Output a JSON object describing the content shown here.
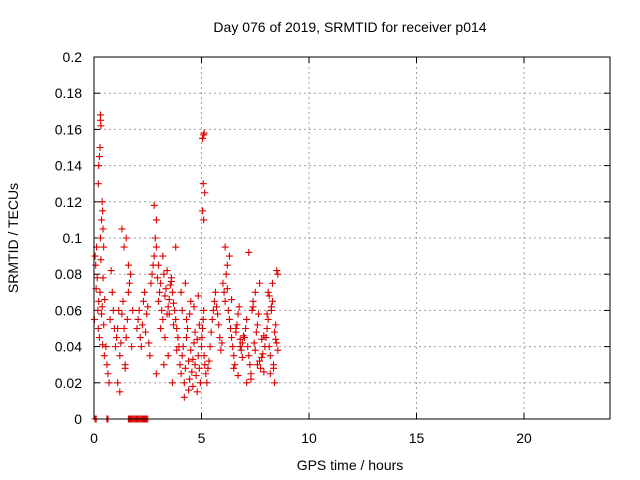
{
  "chart_data": {
    "type": "scatter",
    "title": "Day 076 of 2019, SRMTID for receiver p014",
    "xlabel": "GPS time / hours",
    "ylabel": "SRMTID / TECUs",
    "xlim": [
      0,
      24
    ],
    "ylim": [
      0,
      0.2
    ],
    "x_ticks": [
      0,
      5,
      10,
      15,
      20
    ],
    "x_tick_labels": [
      "0",
      "5",
      "10",
      "15",
      "20"
    ],
    "y_ticks": [
      0,
      0.02,
      0.04,
      0.06,
      0.08,
      0.1,
      0.12,
      0.14,
      0.16,
      0.18,
      0.2
    ],
    "y_tick_labels": [
      "0",
      "0.02",
      "0.04",
      "0.06",
      "0.08",
      "0.1",
      "0.12",
      "0.14",
      "0.16",
      "0.18",
      "0.2"
    ],
    "grid": true,
    "marker": "+",
    "color": "#dd0000",
    "series": [
      {
        "name": "SRMTID",
        "x": [
          0.02,
          0.05,
          0.08,
          0.1,
          0.12,
          0.15,
          0.18,
          0.2,
          0.22,
          0.25,
          0.28,
          0.3,
          0.32,
          0.35,
          0.38,
          0.4,
          0.42,
          0.45,
          0.48,
          0.5,
          0.55,
          0.6,
          0.65,
          0.7,
          0.75,
          0.8,
          0.85,
          0.9,
          0.95,
          0.2,
          0.22,
          0.25,
          0.28,
          0.3,
          0.3,
          0.32,
          0.35,
          0.38,
          0.4,
          0.42,
          0.45,
          1.0,
          1.05,
          1.1,
          1.15,
          1.2,
          1.25,
          1.3,
          1.35,
          1.4,
          1.45,
          1.5,
          1.55,
          1.6,
          1.65,
          1.7,
          1.75,
          1.8,
          1.5,
          1.3,
          1.4,
          1.6,
          1.1,
          1.2,
          1.45,
          2.0,
          2.05,
          2.1,
          2.15,
          2.2,
          2.25,
          2.3,
          2.35,
          2.4,
          2.45,
          2.5,
          2.55,
          2.6,
          2.65,
          2.7,
          2.75,
          2.8,
          2.85,
          2.9,
          2.95,
          2.8,
          2.9,
          3.0,
          3.05,
          3.1,
          3.15,
          3.2,
          3.25,
          3.3,
          3.35,
          3.4,
          3.45,
          3.5,
          3.55,
          3.6,
          3.65,
          3.7,
          3.75,
          3.8,
          3.85,
          3.9,
          3.95,
          3.0,
          3.2,
          3.4,
          3.6,
          3.8,
          3.1,
          3.3,
          3.5,
          3.7,
          2.9,
          3.25,
          3.45,
          3.65,
          3.85,
          4.0,
          4.05,
          4.1,
          4.15,
          4.2,
          4.25,
          4.3,
          4.35,
          4.4,
          4.45,
          4.5,
          4.55,
          4.6,
          4.65,
          4.7,
          4.75,
          4.8,
          4.85,
          4.9,
          4.95,
          4.1,
          4.3,
          4.5,
          4.7,
          4.9,
          4.2,
          4.4,
          4.6,
          4.8,
          4.05,
          4.25,
          4.45,
          4.65,
          4.85,
          5.0,
          5.02,
          5.05,
          5.08,
          5.1,
          5.12,
          5.15,
          5.2,
          5.25,
          5.3,
          5.35,
          5.4,
          5.45,
          5.5,
          5.55,
          5.6,
          5.65,
          5.7,
          5.75,
          5.8,
          5.85,
          5.9,
          5.95,
          5.05,
          5.1,
          5.12,
          5.08,
          5.15,
          5.05,
          5.1,
          6.0,
          6.05,
          6.1,
          6.15,
          6.2,
          6.25,
          6.3,
          6.35,
          6.4,
          6.45,
          6.5,
          6.55,
          6.6,
          6.65,
          6.7,
          6.75,
          6.8,
          6.85,
          6.9,
          6.95,
          6.1,
          6.3,
          6.5,
          6.7,
          6.9,
          6.2,
          6.4,
          6.6,
          6.8,
          7.0,
          7.05,
          7.1,
          7.15,
          7.2,
          7.25,
          7.3,
          7.35,
          7.4,
          7.45,
          7.5,
          7.55,
          7.6,
          7.65,
          7.7,
          7.75,
          7.8,
          7.85,
          7.9,
          7.95,
          7.1,
          7.3,
          7.5,
          7.7,
          7.9,
          7.2,
          7.4,
          7.6,
          7.8,
          8.0,
          8.05,
          8.1,
          8.15,
          8.2,
          8.25,
          8.3,
          8.35,
          8.4,
          8.45,
          8.5,
          8.55,
          8.1,
          8.3,
          8.5,
          8.2,
          8.4,
          8.05,
          8.25,
          8.45,
          8.15,
          8.35,
          8.55,
          0.05,
          0.1,
          0.6,
          0.65,
          1.6,
          1.65,
          1.7,
          1.75,
          1.8,
          1.85,
          1.9,
          1.95,
          2.0,
          2.05,
          2.1,
          2.15,
          2.2,
          2.25,
          2.3,
          2.35,
          2.4,
          2.45,
          2.5
        ],
        "y": [
          0.055,
          0.09,
          0.085,
          0.072,
          0.095,
          0.078,
          0.06,
          0.05,
          0.065,
          0.045,
          0.07,
          0.1,
          0.088,
          0.058,
          0.062,
          0.041,
          0.078,
          0.052,
          0.035,
          0.066,
          0.04,
          0.03,
          0.025,
          0.02,
          0.055,
          0.082,
          0.07,
          0.06,
          0.05,
          0.13,
          0.14,
          0.145,
          0.15,
          0.165,
          0.168,
          0.162,
          0.11,
          0.12,
          0.115,
          0.105,
          0.095,
          0.04,
          0.045,
          0.05,
          0.06,
          0.035,
          0.042,
          0.058,
          0.065,
          0.05,
          0.03,
          0.045,
          0.055,
          0.07,
          0.075,
          0.08,
          0.04,
          0.06,
          0.1,
          0.105,
          0.095,
          0.085,
          0.02,
          0.015,
          0.028,
          0.05,
          0.055,
          0.06,
          0.045,
          0.04,
          0.052,
          0.065,
          0.07,
          0.048,
          0.058,
          0.062,
          0.042,
          0.035,
          0.075,
          0.08,
          0.085,
          0.09,
          0.1,
          0.095,
          0.078,
          0.118,
          0.11,
          0.065,
          0.07,
          0.075,
          0.06,
          0.055,
          0.08,
          0.068,
          0.072,
          0.058,
          0.062,
          0.066,
          0.074,
          0.078,
          0.07,
          0.064,
          0.06,
          0.055,
          0.05,
          0.045,
          0.04,
          0.085,
          0.09,
          0.082,
          0.076,
          0.095,
          0.05,
          0.045,
          0.058,
          0.052,
          0.025,
          0.03,
          0.035,
          0.02,
          0.038,
          0.03,
          0.025,
          0.035,
          0.04,
          0.02,
          0.028,
          0.045,
          0.05,
          0.032,
          0.022,
          0.038,
          0.026,
          0.018,
          0.042,
          0.03,
          0.024,
          0.015,
          0.035,
          0.028,
          0.02,
          0.06,
          0.055,
          0.065,
          0.048,
          0.052,
          0.012,
          0.016,
          0.033,
          0.044,
          0.07,
          0.075,
          0.058,
          0.062,
          0.068,
          0.04,
          0.045,
          0.05,
          0.055,
          0.06,
          0.035,
          0.03,
          0.025,
          0.02,
          0.028,
          0.032,
          0.04,
          0.048,
          0.055,
          0.06,
          0.065,
          0.07,
          0.062,
          0.058,
          0.052,
          0.045,
          0.038,
          0.042,
          0.155,
          0.157,
          0.158,
          0.13,
          0.125,
          0.115,
          0.11,
          0.075,
          0.07,
          0.065,
          0.08,
          0.085,
          0.06,
          0.055,
          0.05,
          0.045,
          0.04,
          0.035,
          0.03,
          0.048,
          0.052,
          0.058,
          0.062,
          0.044,
          0.038,
          0.042,
          0.046,
          0.095,
          0.09,
          0.028,
          0.024,
          0.034,
          0.072,
          0.066,
          0.05,
          0.04,
          0.045,
          0.05,
          0.055,
          0.04,
          0.035,
          0.03,
          0.025,
          0.06,
          0.065,
          0.042,
          0.038,
          0.048,
          0.052,
          0.058,
          0.032,
          0.028,
          0.044,
          0.036,
          0.046,
          0.04,
          0.02,
          0.022,
          0.07,
          0.075,
          0.026,
          0.092,
          0.062,
          0.03,
          0.034,
          0.045,
          0.05,
          0.055,
          0.04,
          0.035,
          0.06,
          0.065,
          0.03,
          0.048,
          0.052,
          0.042,
          0.038,
          0.07,
          0.075,
          0.082,
          0.025,
          0.02,
          0.058,
          0.062,
          0.044,
          0.068,
          0.028,
          0.08,
          0,
          0,
          0,
          0,
          0,
          0,
          0,
          0,
          0,
          0,
          0,
          0,
          0,
          0,
          0,
          0,
          0,
          0,
          0,
          0,
          0,
          0,
          0
        ]
      }
    ]
  }
}
